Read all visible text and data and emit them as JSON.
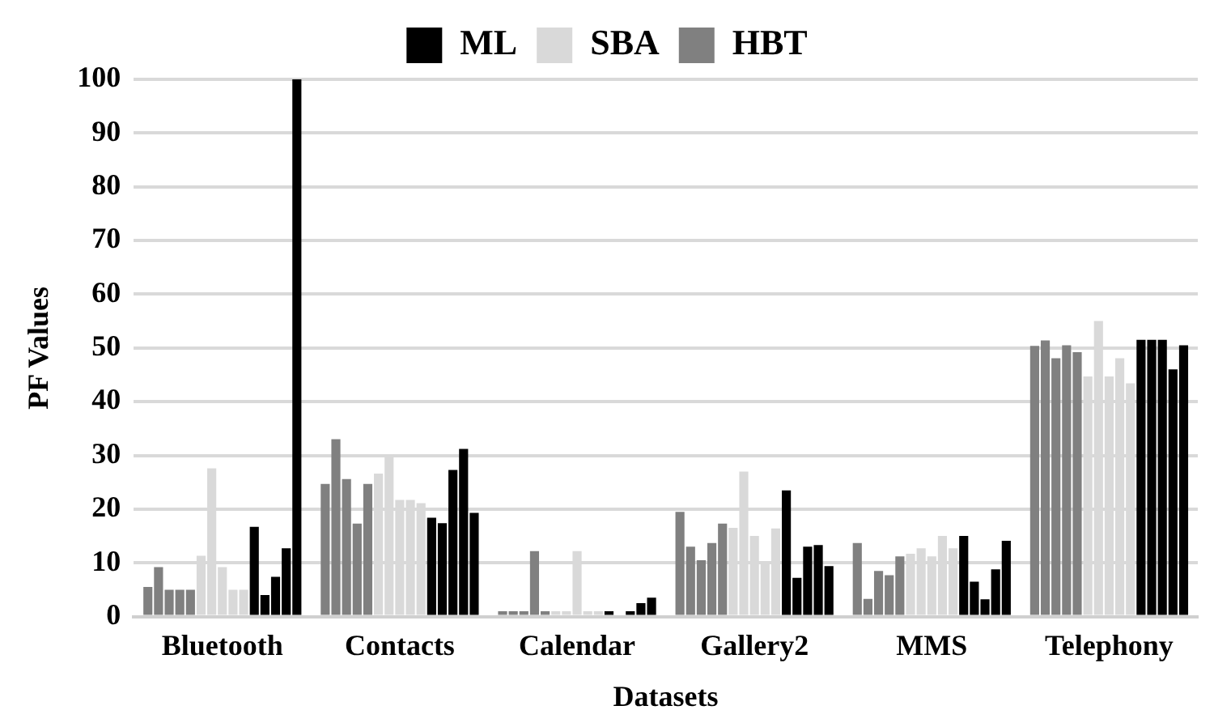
{
  "chart_data": {
    "type": "bar",
    "xlabel": "Datasets",
    "ylabel": "PF Values",
    "categories": [
      "Bluetooth",
      "Contacts",
      "Calendar",
      "Gallery2",
      "MMS",
      "Telephony"
    ],
    "ylim": [
      0,
      100
    ],
    "yticks": [
      0,
      10,
      20,
      30,
      40,
      50,
      60,
      70,
      80,
      90,
      100
    ],
    "grid": "y",
    "legend": "top",
    "series": [
      {
        "name": "HBT",
        "color": "#808080",
        "values": [
          5.5,
          24.7,
          1,
          19.5,
          13.7,
          50.4
        ]
      },
      {
        "color": "#808080",
        "values": [
          9.2,
          33,
          1,
          13,
          3.3,
          51.4
        ]
      },
      {
        "color": "#808080",
        "values": [
          5,
          25.6,
          1,
          10.5,
          8.5,
          48.1
        ]
      },
      {
        "color": "#808080",
        "values": [
          5,
          17.3,
          12.2,
          13.7,
          7.7,
          50.5
        ]
      },
      {
        "color": "#808080",
        "values": [
          5,
          24.7,
          1,
          17.3,
          11.2,
          49.2
        ]
      },
      {
        "name": "SBA",
        "color": "#d9d9d9",
        "values": [
          11.3,
          26.6,
          1,
          16.5,
          11.7,
          44.7
        ]
      },
      {
        "color": "#d9d9d9",
        "values": [
          27.6,
          30.2,
          1,
          27,
          12.7,
          55
        ]
      },
      {
        "color": "#d9d9d9",
        "values": [
          9.2,
          21.7,
          12.2,
          15,
          11.2,
          44.7
        ]
      },
      {
        "color": "#d9d9d9",
        "values": [
          5,
          21.7,
          1,
          10.2,
          15,
          48.1
        ]
      },
      {
        "color": "#d9d9d9",
        "values": [
          5,
          21.1,
          1,
          16.4,
          12.7,
          43.4
        ]
      },
      {
        "name": "ML",
        "color": "#000000",
        "values": [
          16.7,
          18.4,
          1,
          23.5,
          15,
          51.5
        ]
      },
      {
        "color": "#000000",
        "values": [
          4,
          17.4,
          0,
          7.2,
          6.5,
          51.5
        ]
      },
      {
        "color": "#000000",
        "values": [
          7.4,
          27.3,
          1,
          13,
          3.2,
          51.5
        ]
      },
      {
        "color": "#000000",
        "values": [
          12.7,
          31.2,
          2.5,
          13.3,
          8.8,
          46
        ]
      },
      {
        "color": "#000000",
        "values": [
          100,
          19.3,
          3.5,
          9.4,
          14.1,
          50.5
        ]
      }
    ]
  }
}
